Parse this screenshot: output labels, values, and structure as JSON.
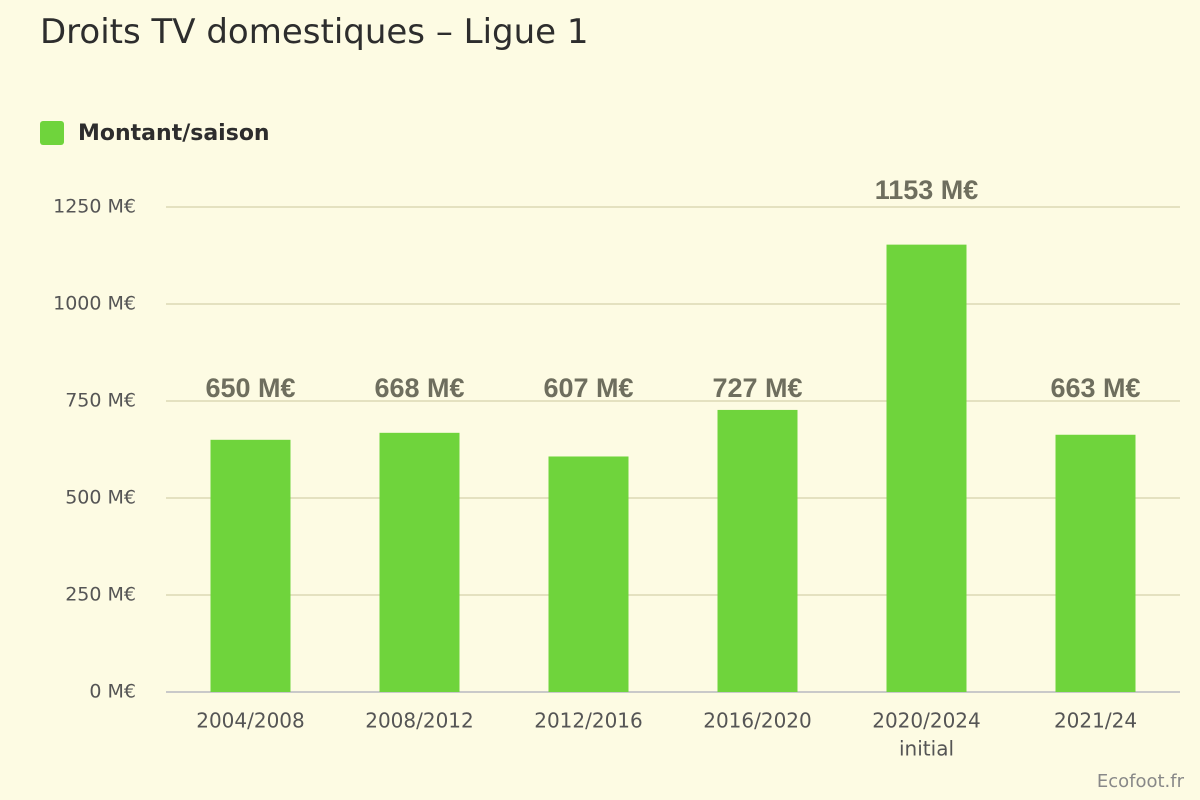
{
  "colors": {
    "background": "#fdfbe3",
    "bar": "#6fd43c",
    "grid": "#e4e1c0",
    "axis": "#c9c9c9",
    "value_label": "#6e6e5e",
    "tick_label": "#555555"
  },
  "chart_data": {
    "type": "bar",
    "title": "Droits TV domestiques – Ligue 1",
    "categories": [
      "2004/2008",
      "2008/2012",
      "2012/2016",
      "2016/2020",
      "2020/2024|initial",
      "2021/24"
    ],
    "series": [
      {
        "name": "Montant/saison",
        "values": [
          650,
          668,
          607,
          727,
          1153,
          663
        ]
      }
    ],
    "value_labels": [
      "650 M€",
      "668 M€",
      "607 M€",
      "727 M€",
      "1153 M€",
      "663 M€"
    ],
    "ylim": [
      0,
      1250
    ],
    "yticks": [
      0,
      250,
      500,
      750,
      1000,
      1250
    ],
    "ytick_labels": [
      "0 M€",
      "250 M€",
      "500 M€",
      "750 M€",
      "1000 M€",
      "1250 M€"
    ],
    "xlabel": "",
    "ylabel": "",
    "grid": true,
    "legend_position": "top-left"
  },
  "source": "Ecofoot.fr"
}
